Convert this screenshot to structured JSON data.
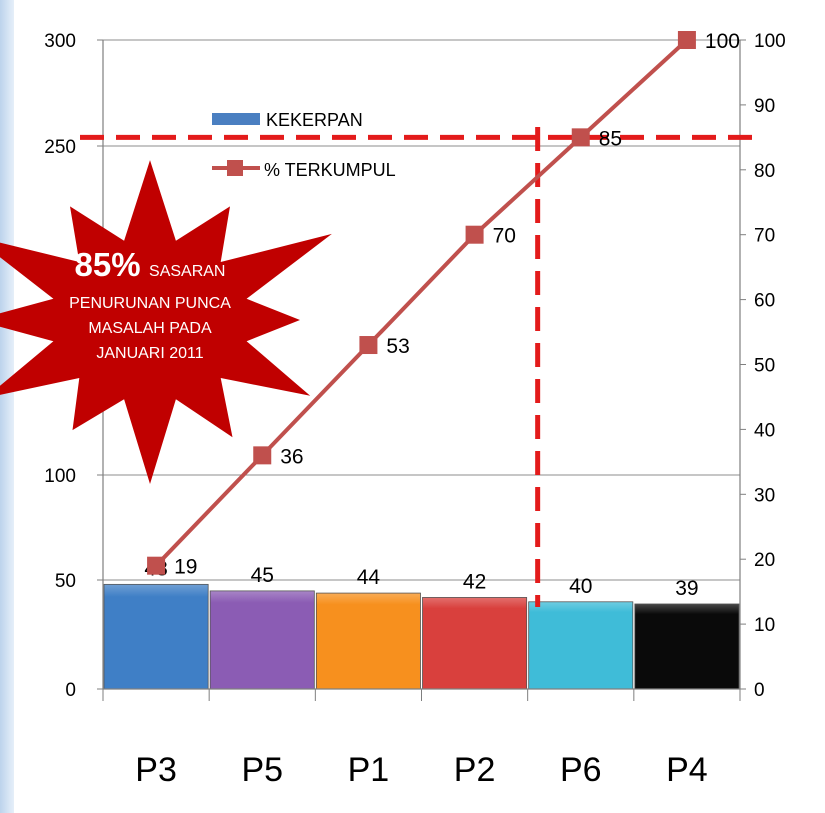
{
  "chart_data": {
    "type": "bar",
    "categories": [
      "P3",
      "P5",
      "P1",
      "P2",
      "P6",
      "P4"
    ],
    "series": [
      {
        "name": "KEKERPAN",
        "type": "bar",
        "axis": "left",
        "values": [
          48,
          45,
          44,
          42,
          40,
          39
        ],
        "colors": [
          "#3f7fc6",
          "#8b5cb4",
          "#f7901e",
          "#d9403d",
          "#3fbcd8",
          "#0a0a0a"
        ]
      },
      {
        "name": "% TERKUMPUL",
        "type": "line",
        "axis": "right",
        "values": [
          19,
          36,
          53,
          70,
          85,
          100
        ],
        "color": "#c0504d"
      }
    ],
    "y_left": {
      "ylim": [
        0,
        300
      ],
      "ticks": [
        "0",
        "50",
        "100",
        "250",
        "300"
      ],
      "tick_values": [
        0,
        50,
        100,
        250,
        300
      ]
    },
    "y_right": {
      "ylim": [
        0,
        100
      ],
      "ticks": [
        "0",
        "10",
        "20",
        "30",
        "40",
        "50",
        "60",
        "70",
        "80",
        "90",
        "100"
      ],
      "tick_values": [
        0,
        10,
        20,
        30,
        40,
        50,
        60,
        70,
        80,
        90,
        100
      ]
    },
    "grid": true,
    "legend_placement": "upper-left",
    "reference_lines": [
      {
        "axis": "right",
        "value": 85,
        "style": "dashed",
        "color": "#e31b1b"
      },
      {
        "axis": "x",
        "value": "P6",
        "style": "dashed",
        "color": "#e31b1b"
      }
    ],
    "annotation": {
      "highlight": "85%",
      "highlight_rest": "SASARAN",
      "lines": [
        "PENURUNAN PUNCA",
        "MASALAH PADA",
        "JANUARI 2011"
      ],
      "color": "#c00000"
    }
  }
}
